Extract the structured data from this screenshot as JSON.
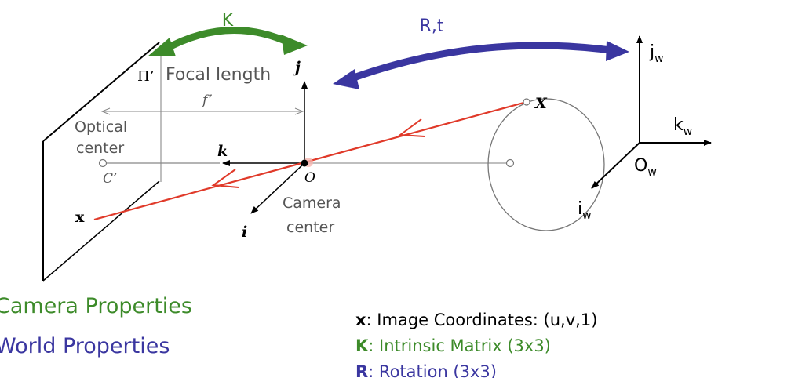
{
  "labels": {
    "K": "K",
    "Rt": "R,t",
    "Pi": "Π’",
    "focal_length": "Focal length",
    "f_prime": "f’",
    "optical_center_1": "Optical",
    "optical_center_2": "center",
    "C_prime": "C’",
    "x_image": "x",
    "k_axis": "k",
    "j_axis": "j",
    "i_axis": "i",
    "O": "O",
    "camera_center_1": "Camera",
    "camera_center_2": "center",
    "X_world": "X",
    "jw": "j",
    "kw": "k",
    "Ow": "O",
    "iw": "i",
    "w_sub": "w"
  },
  "legend": {
    "camera_properties": "Camera Properties",
    "world_properties": "World Properties"
  },
  "notes": [
    {
      "symbol": "x",
      "text": ": Image Coordinates: (u,v,1)",
      "color": "#000000"
    },
    {
      "symbol": "K",
      "text": ": Intrinsic Matrix (3x3)",
      "color": "#3d8b2a"
    },
    {
      "symbol": "R",
      "text": ": Rotation (3x3)",
      "color": "#3a36a0"
    }
  ],
  "colors": {
    "camera": "#3d8b2a",
    "world": "#3a36a0",
    "ray": "#e03a2a",
    "text_gray": "#555555"
  }
}
